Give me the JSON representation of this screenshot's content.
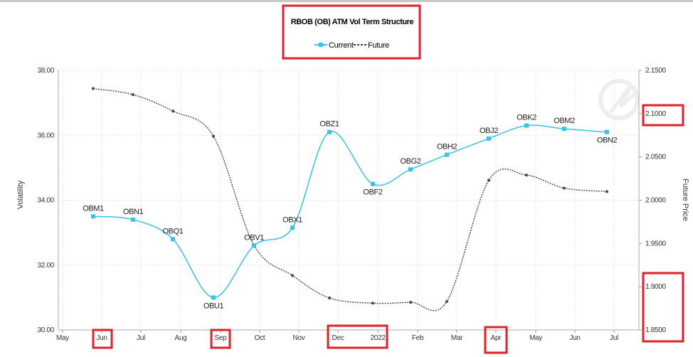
{
  "chart_data": {
    "type": "line",
    "title": "RBOB (OB) ATM Vol Term Structure",
    "ylabel": "Volatility",
    "y2label": "Future Price",
    "ylim": [
      30.0,
      38.0
    ],
    "y2lim": [
      1.85,
      2.15
    ],
    "yticks": [
      "30.00",
      "32.00",
      "34.00",
      "36.00",
      "38.00"
    ],
    "y2ticks": [
      "1.8500",
      "1.9000",
      "1.9500",
      "2.0000",
      "2.0500",
      "2.1000",
      "2.1500"
    ],
    "x_tick_labels": [
      "May",
      "Jun",
      "Jul",
      "Aug",
      "Sep",
      "Oct",
      "Nov",
      "Dec",
      "2022",
      "Feb",
      "Mar",
      "Apr",
      "May",
      "Jun",
      "Jul"
    ],
    "legend": [
      "Current",
      "Future"
    ],
    "legend_position": "top",
    "series": [
      {
        "name": "Current",
        "color": "#33c3ee",
        "axis": "left",
        "labels": [
          "OBM1",
          "OBN1",
          "OBQ1",
          "OBU1",
          "OBV1",
          "OBX1",
          "OBZ1",
          "OBF2",
          "OBG2",
          "OBH2",
          "OBJ2",
          "OBK2",
          "OBM2",
          "OBN2"
        ],
        "values": [
          33.5,
          33.4,
          32.8,
          31.0,
          32.6,
          33.15,
          36.1,
          34.5,
          34.95,
          35.4,
          35.9,
          36.3,
          36.2,
          36.1
        ]
      },
      {
        "name": "Future",
        "color": "#444444",
        "axis": "right",
        "values": [
          2.129,
          2.122,
          2.103,
          2.074,
          1.948,
          1.913,
          1.887,
          1.881,
          1.882,
          1.883,
          2.023,
          2.029,
          2.014,
          2.01
        ]
      }
    ]
  }
}
